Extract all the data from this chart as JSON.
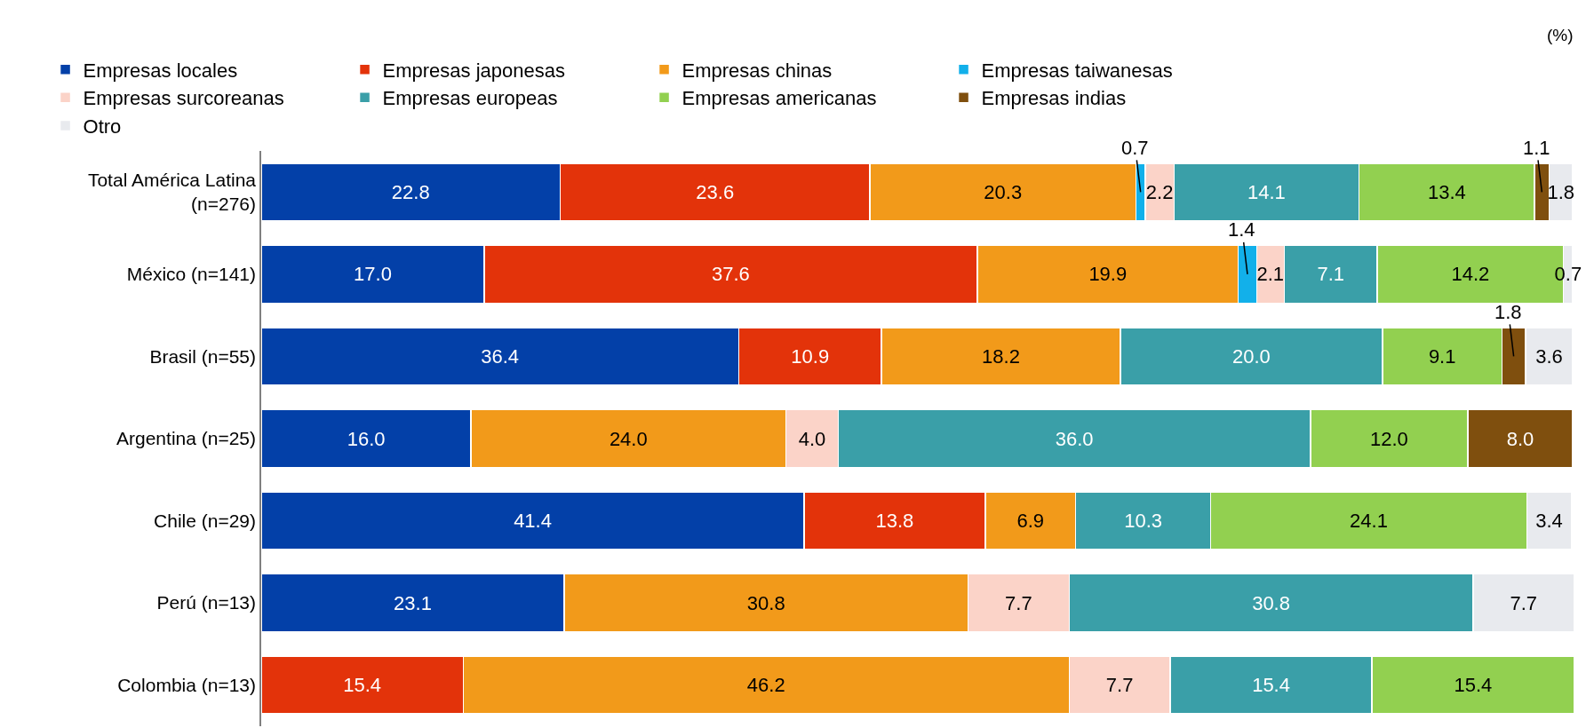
{
  "chart_data": {
    "type": "bar",
    "orientation": "horizontal",
    "stacked": true,
    "legend": "top",
    "tick_labels": "y",
    "xlim": [
      0,
      100.2
    ],
    "categories": [
      "Total América Latina\n(n=276)",
      "México (n=141)",
      "Brasil (n=55)",
      "Argentina (n=25)",
      "Chile (n=29)",
      "Perú (n=13)",
      "Colombia (n=13)"
    ],
    "annotations": [
      "(%)"
    ],
    "series": [
      {
        "name": "Empresas locales",
        "color": "#0340a8",
        "values": [
          22.8,
          17.0,
          36.4,
          16.0,
          41.4,
          23.1,
          null
        ],
        "value_labels": [
          "22.8",
          "17.0",
          "36.4",
          "16.0",
          "41.4",
          "23.1",
          null
        ]
      },
      {
        "name": "Empresas japonesas",
        "color": "#e3330a",
        "values": [
          23.6,
          37.6,
          10.9,
          null,
          13.8,
          null,
          15.4
        ],
        "value_labels": [
          "23.6",
          "37.6",
          "10.9",
          null,
          "13.8",
          null,
          "15.4"
        ]
      },
      {
        "name": "Empresas chinas",
        "color": "#f29a1a",
        "values": [
          20.3,
          19.9,
          18.2,
          24.0,
          6.9,
          30.8,
          46.2
        ],
        "value_labels": [
          "20.3",
          "19.9",
          "18.2",
          "24.0",
          "6.9",
          "30.8",
          "46.2"
        ]
      },
      {
        "name": "Empresas taiwanesas",
        "color": "#12b0ea",
        "values": [
          0.7,
          1.4,
          null,
          null,
          null,
          null,
          null
        ],
        "value_labels": [
          "0.7",
          "1.4",
          null,
          null,
          null,
          null,
          null
        ]
      },
      {
        "name": "Empresas surcoreanas",
        "color": "#fbd3c8",
        "values": [
          2.2,
          2.1,
          null,
          4.0,
          null,
          7.7,
          7.7
        ],
        "value_labels": [
          "2.2",
          "2.1",
          null,
          "4.0",
          null,
          "7.7",
          "7.7"
        ]
      },
      {
        "name": "Empresas europeas",
        "color": "#3a9fa8",
        "values": [
          14.1,
          7.1,
          20.0,
          36.0,
          10.3,
          30.8,
          15.4
        ],
        "value_labels": [
          "14.1",
          "7.1",
          "20.0",
          "36.0",
          "10.3",
          "30.8",
          "15.4"
        ]
      },
      {
        "name": "Empresas americanas",
        "color": "#92d050",
        "values": [
          13.4,
          14.2,
          9.1,
          12.0,
          24.1,
          null,
          15.4
        ],
        "value_labels": [
          "13.4",
          "14.2",
          "9.1",
          "12.0",
          "24.1",
          null,
          "15.4"
        ]
      },
      {
        "name": "Empresas indias",
        "color": "#7f4f0e",
        "values": [
          1.1,
          null,
          1.8,
          8.0,
          null,
          null,
          null
        ],
        "value_labels": [
          "1.1",
          null,
          "1.8",
          "8.0",
          null,
          null,
          null
        ]
      },
      {
        "name": "Otro",
        "color": "#e8eaee",
        "values": [
          1.8,
          0.7,
          3.6,
          null,
          3.4,
          7.7,
          null
        ],
        "value_labels": [
          "1.8",
          "0.7",
          "3.6",
          null,
          "3.4",
          "7.7",
          null
        ]
      }
    ]
  }
}
